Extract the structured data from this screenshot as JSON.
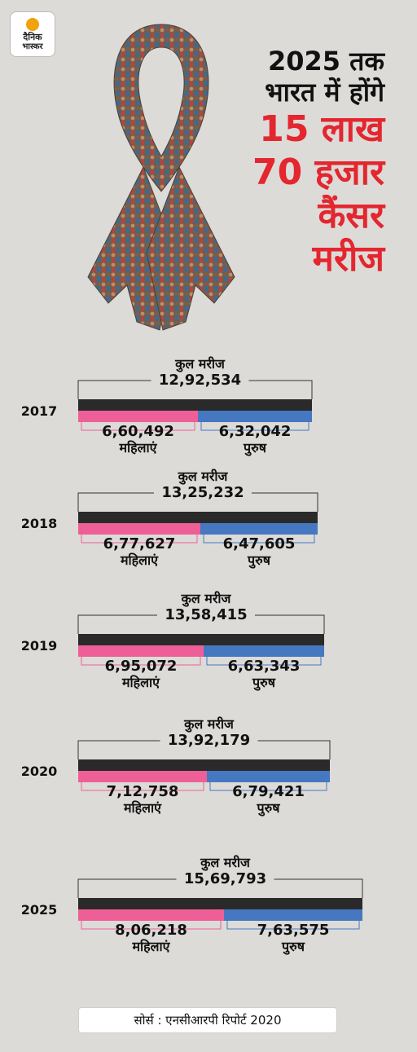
{
  "brand": {
    "line1": "दैनिक",
    "line2": "भास्कर"
  },
  "headline": {
    "line1": "2025 तक",
    "line2": "भारत में होंगे",
    "line3": "15 लाख",
    "line4": "70 हजार",
    "line5": "कैंसर",
    "line6": "मरीज"
  },
  "colors": {
    "total": "#2a2a2a",
    "women": "#ef5f97",
    "men": "#4678c2",
    "headline_red": "#e4262f",
    "background": "#dcdbd8"
  },
  "chart_data": {
    "type": "bar",
    "total_label": "कुल मरीज",
    "women_label": "महिलाएं",
    "men_label": "पुरुष",
    "categories": [
      "2017",
      "2018",
      "2019",
      "2020",
      "2025"
    ],
    "totals": [
      "12,92,534",
      "13,25,232",
      "13,58,415",
      "13,92,179",
      "15,69,793"
    ],
    "women": [
      "6,60,492",
      "6,77,627",
      "6,95,072",
      "7,12,758",
      "8,06,218"
    ],
    "men": [
      "6,32,042",
      "6,47,605",
      "6,63,343",
      "6,79,421",
      "7,63,575"
    ],
    "total_values": [
      1292534,
      1325232,
      1358415,
      1392179,
      1569793
    ],
    "women_values": [
      660492,
      677627,
      695072,
      712758,
      806218
    ],
    "men_values": [
      632042,
      647605,
      663343,
      679421,
      763575
    ]
  },
  "source": "सोर्स : एनसीआरपी रिपोर्ट 2020"
}
